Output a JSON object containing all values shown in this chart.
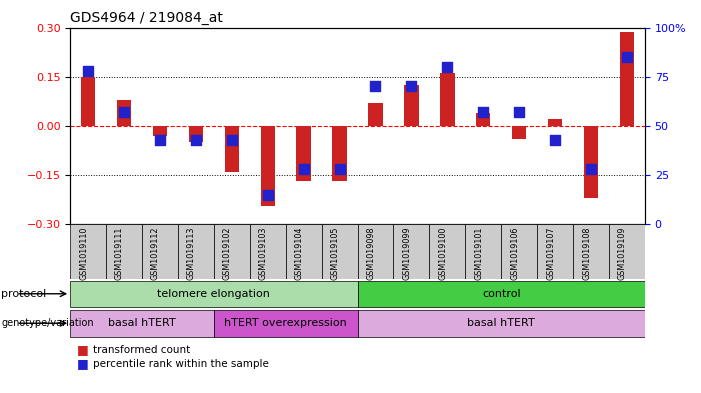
{
  "title": "GDS4964 / 219084_at",
  "samples": [
    "GSM1019110",
    "GSM1019111",
    "GSM1019112",
    "GSM1019113",
    "GSM1019102",
    "GSM1019103",
    "GSM1019104",
    "GSM1019105",
    "GSM1019098",
    "GSM1019099",
    "GSM1019100",
    "GSM1019101",
    "GSM1019106",
    "GSM1019107",
    "GSM1019108",
    "GSM1019109"
  ],
  "red_values": [
    0.15,
    0.08,
    -0.03,
    -0.05,
    -0.14,
    -0.245,
    -0.17,
    -0.17,
    0.07,
    0.125,
    0.16,
    0.04,
    -0.04,
    0.02,
    -0.22,
    0.285
  ],
  "blue_percentiles": [
    78,
    57,
    43,
    43,
    43,
    15,
    28,
    28,
    70,
    70,
    80,
    57,
    57,
    43,
    28,
    85
  ],
  "ylim": [
    -0.3,
    0.3
  ],
  "yticks_left": [
    -0.3,
    -0.15,
    0.0,
    0.15,
    0.3
  ],
  "yticks_right": [
    0,
    25,
    50,
    75,
    100
  ],
  "protocol_groups": [
    {
      "label": "telomere elongation",
      "start": 0,
      "end": 8,
      "color": "#aaddaa"
    },
    {
      "label": "control",
      "start": 8,
      "end": 16,
      "color": "#44cc44"
    }
  ],
  "genotype_groups": [
    {
      "label": "basal hTERT",
      "start": 0,
      "end": 4,
      "color": "#ddaadd"
    },
    {
      "label": "hTERT overexpression",
      "start": 4,
      "end": 8,
      "color": "#cc55cc"
    },
    {
      "label": "basal hTERT",
      "start": 8,
      "end": 16,
      "color": "#ddaadd"
    }
  ],
  "bar_color": "#cc2222",
  "dot_color": "#2222cc",
  "bg_color": "#ffffff",
  "tick_bg": "#cccccc",
  "zero_line_color": "#ff0000",
  "dot_line_color": "#000000",
  "title_fontsize": 10,
  "bar_width": 0.4,
  "dot_marker_size": 50
}
